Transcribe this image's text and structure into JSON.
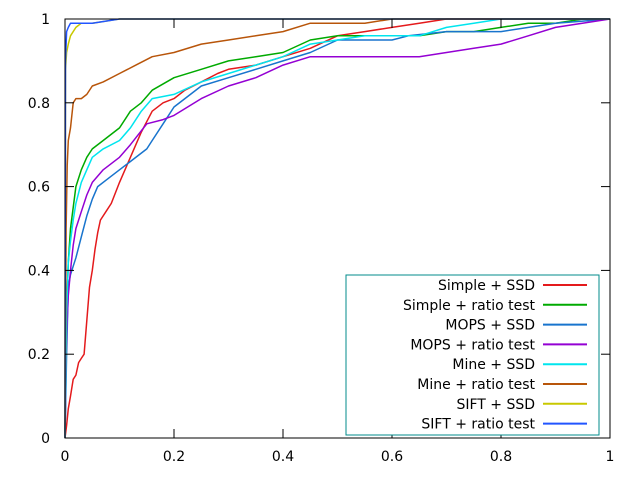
{
  "chart_data": {
    "type": "line",
    "title": "",
    "xlabel": "",
    "ylabel": "",
    "xlim": [
      0,
      1
    ],
    "ylim": [
      0,
      1
    ],
    "grid": false,
    "legend_position": "bottom-right",
    "x_ticks": [
      "0",
      "0.2",
      "0.4",
      "0.6",
      "0.8",
      "1"
    ],
    "y_ticks": [
      "0",
      "0.2",
      "0.4",
      "0.6",
      "0.8",
      "1"
    ],
    "series": [
      {
        "name": "Simple + SSD",
        "color": "#e41a1c",
        "points": [
          [
            0,
            0
          ],
          [
            0.003,
            0.03
          ],
          [
            0.006,
            0.07
          ],
          [
            0.01,
            0.1
          ],
          [
            0.015,
            0.14
          ],
          [
            0.02,
            0.15
          ],
          [
            0.025,
            0.18
          ],
          [
            0.03,
            0.19
          ],
          [
            0.035,
            0.2
          ],
          [
            0.04,
            0.28
          ],
          [
            0.045,
            0.36
          ],
          [
            0.05,
            0.4
          ],
          [
            0.055,
            0.45
          ],
          [
            0.06,
            0.49
          ],
          [
            0.065,
            0.52
          ],
          [
            0.075,
            0.54
          ],
          [
            0.085,
            0.56
          ],
          [
            0.1,
            0.61
          ],
          [
            0.12,
            0.67
          ],
          [
            0.14,
            0.73
          ],
          [
            0.16,
            0.78
          ],
          [
            0.18,
            0.8
          ],
          [
            0.2,
            0.81
          ],
          [
            0.22,
            0.83
          ],
          [
            0.25,
            0.85
          ],
          [
            0.28,
            0.87
          ],
          [
            0.3,
            0.88
          ],
          [
            0.35,
            0.89
          ],
          [
            0.4,
            0.91
          ],
          [
            0.45,
            0.93
          ],
          [
            0.5,
            0.96
          ],
          [
            0.55,
            0.97
          ],
          [
            0.6,
            0.98
          ],
          [
            0.65,
            0.99
          ],
          [
            0.7,
            1.0
          ],
          [
            1.0,
            1.0
          ]
        ]
      },
      {
        "name": "Simple + ratio test",
        "color": "#00aa00",
        "points": [
          [
            0,
            0
          ],
          [
            0.003,
            0.3
          ],
          [
            0.006,
            0.42
          ],
          [
            0.01,
            0.5
          ],
          [
            0.015,
            0.55
          ],
          [
            0.02,
            0.6
          ],
          [
            0.03,
            0.64
          ],
          [
            0.04,
            0.67
          ],
          [
            0.05,
            0.69
          ],
          [
            0.07,
            0.71
          ],
          [
            0.1,
            0.74
          ],
          [
            0.12,
            0.78
          ],
          [
            0.14,
            0.8
          ],
          [
            0.16,
            0.83
          ],
          [
            0.2,
            0.86
          ],
          [
            0.25,
            0.88
          ],
          [
            0.3,
            0.9
          ],
          [
            0.35,
            0.91
          ],
          [
            0.4,
            0.92
          ],
          [
            0.45,
            0.95
          ],
          [
            0.5,
            0.96
          ],
          [
            0.55,
            0.96
          ],
          [
            0.6,
            0.96
          ],
          [
            0.65,
            0.96
          ],
          [
            0.7,
            0.97
          ],
          [
            0.75,
            0.97
          ],
          [
            0.8,
            0.98
          ],
          [
            0.85,
            0.99
          ],
          [
            0.9,
            0.99
          ],
          [
            0.95,
            1.0
          ],
          [
            1.0,
            1.0
          ]
        ]
      },
      {
        "name": "MOPS + SSD",
        "color": "#1874cd",
        "points": [
          [
            0,
            0
          ],
          [
            0.003,
            0.2
          ],
          [
            0.006,
            0.36
          ],
          [
            0.01,
            0.39
          ],
          [
            0.015,
            0.41
          ],
          [
            0.02,
            0.43
          ],
          [
            0.03,
            0.48
          ],
          [
            0.04,
            0.53
          ],
          [
            0.05,
            0.57
          ],
          [
            0.06,
            0.6
          ],
          [
            0.08,
            0.62
          ],
          [
            0.1,
            0.64
          ],
          [
            0.12,
            0.66
          ],
          [
            0.15,
            0.69
          ],
          [
            0.16,
            0.71
          ],
          [
            0.18,
            0.75
          ],
          [
            0.2,
            0.79
          ],
          [
            0.22,
            0.81
          ],
          [
            0.25,
            0.84
          ],
          [
            0.3,
            0.86
          ],
          [
            0.35,
            0.88
          ],
          [
            0.4,
            0.9
          ],
          [
            0.45,
            0.92
          ],
          [
            0.5,
            0.95
          ],
          [
            0.55,
            0.95
          ],
          [
            0.6,
            0.95
          ],
          [
            0.63,
            0.96
          ],
          [
            0.7,
            0.97
          ],
          [
            0.8,
            0.97
          ],
          [
            0.9,
            0.99
          ],
          [
            1.0,
            1.0
          ]
        ]
      },
      {
        "name": "MOPS + ratio test",
        "color": "#9400d3",
        "points": [
          [
            0,
            0
          ],
          [
            0.003,
            0.25
          ],
          [
            0.006,
            0.34
          ],
          [
            0.01,
            0.4
          ],
          [
            0.015,
            0.46
          ],
          [
            0.02,
            0.5
          ],
          [
            0.03,
            0.54
          ],
          [
            0.04,
            0.58
          ],
          [
            0.05,
            0.61
          ],
          [
            0.07,
            0.64
          ],
          [
            0.1,
            0.67
          ],
          [
            0.12,
            0.7
          ],
          [
            0.15,
            0.75
          ],
          [
            0.18,
            0.76
          ],
          [
            0.2,
            0.77
          ],
          [
            0.25,
            0.81
          ],
          [
            0.3,
            0.84
          ],
          [
            0.35,
            0.86
          ],
          [
            0.4,
            0.89
          ],
          [
            0.45,
            0.91
          ],
          [
            0.5,
            0.91
          ],
          [
            0.55,
            0.91
          ],
          [
            0.6,
            0.91
          ],
          [
            0.65,
            0.91
          ],
          [
            0.7,
            0.92
          ],
          [
            0.75,
            0.93
          ],
          [
            0.8,
            0.94
          ],
          [
            0.85,
            0.96
          ],
          [
            0.9,
            0.98
          ],
          [
            1.0,
            1.0
          ]
        ]
      },
      {
        "name": "Mine + SSD",
        "color": "#00e5ee",
        "points": [
          [
            0,
            0
          ],
          [
            0.003,
            0.3
          ],
          [
            0.006,
            0.42
          ],
          [
            0.01,
            0.47
          ],
          [
            0.015,
            0.52
          ],
          [
            0.02,
            0.56
          ],
          [
            0.03,
            0.61
          ],
          [
            0.04,
            0.64
          ],
          [
            0.05,
            0.67
          ],
          [
            0.07,
            0.69
          ],
          [
            0.1,
            0.71
          ],
          [
            0.12,
            0.74
          ],
          [
            0.14,
            0.78
          ],
          [
            0.16,
            0.81
          ],
          [
            0.2,
            0.82
          ],
          [
            0.25,
            0.85
          ],
          [
            0.3,
            0.87
          ],
          [
            0.35,
            0.89
          ],
          [
            0.4,
            0.91
          ],
          [
            0.45,
            0.94
          ],
          [
            0.5,
            0.95
          ],
          [
            0.55,
            0.96
          ],
          [
            0.6,
            0.96
          ],
          [
            0.65,
            0.96
          ],
          [
            0.7,
            0.98
          ],
          [
            0.75,
            0.99
          ],
          [
            0.8,
            1.0
          ],
          [
            1.0,
            1.0
          ]
        ]
      },
      {
        "name": "Mine + ratio test",
        "color": "#b8550a",
        "points": [
          [
            0,
            0
          ],
          [
            0.002,
            0.5
          ],
          [
            0.004,
            0.65
          ],
          [
            0.006,
            0.71
          ],
          [
            0.01,
            0.74
          ],
          [
            0.015,
            0.8
          ],
          [
            0.02,
            0.81
          ],
          [
            0.03,
            0.81
          ],
          [
            0.04,
            0.82
          ],
          [
            0.05,
            0.84
          ],
          [
            0.07,
            0.85
          ],
          [
            0.1,
            0.87
          ],
          [
            0.13,
            0.89
          ],
          [
            0.16,
            0.91
          ],
          [
            0.2,
            0.92
          ],
          [
            0.25,
            0.94
          ],
          [
            0.3,
            0.95
          ],
          [
            0.35,
            0.96
          ],
          [
            0.4,
            0.97
          ],
          [
            0.45,
            0.99
          ],
          [
            0.5,
            0.99
          ],
          [
            0.55,
            0.99
          ],
          [
            0.6,
            1.0
          ],
          [
            1.0,
            1.0
          ]
        ]
      },
      {
        "name": "SIFT + SSD",
        "color": "#c8c800",
        "points": [
          [
            0,
            0
          ],
          [
            0.001,
            0.88
          ],
          [
            0.003,
            0.92
          ],
          [
            0.006,
            0.94
          ],
          [
            0.01,
            0.96
          ],
          [
            0.02,
            0.98
          ],
          [
            0.03,
            0.99
          ],
          [
            0.05,
            0.99
          ],
          [
            0.1,
            1.0
          ],
          [
            0.2,
            1.0
          ],
          [
            1.0,
            1.0
          ]
        ]
      },
      {
        "name": "SIFT + ratio test",
        "color": "#2255ff",
        "points": [
          [
            0,
            0
          ],
          [
            0.001,
            0.9
          ],
          [
            0.003,
            0.97
          ],
          [
            0.006,
            0.98
          ],
          [
            0.01,
            0.99
          ],
          [
            0.03,
            0.99
          ],
          [
            0.05,
            0.99
          ],
          [
            0.1,
            1.0
          ],
          [
            1.0,
            1.0
          ]
        ]
      }
    ]
  }
}
